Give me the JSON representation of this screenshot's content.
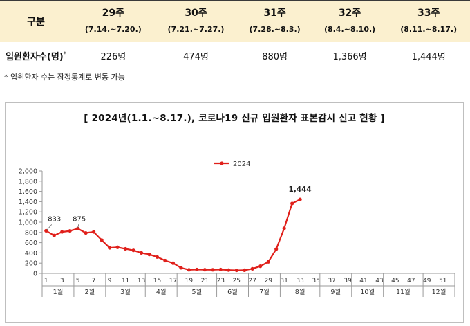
{
  "table": {
    "header_label": "구분",
    "columns": [
      {
        "week": "29주",
        "range": "(7.14.~7.20.)"
      },
      {
        "week": "30주",
        "range": "(7.21.~7.27.)"
      },
      {
        "week": "31주",
        "range": "(7.28.~8.3.)"
      },
      {
        "week": "32주",
        "range": "(8.4.~8.10.)"
      },
      {
        "week": "33주",
        "range": "(8.11.~8.17.)"
      }
    ],
    "row_label": "입원환자수(명)",
    "row_label_sup": "*",
    "values": [
      "226명",
      "474명",
      "880명",
      "1,366명",
      "1,444명"
    ]
  },
  "note": "* 입원환자 수는 잠정통계로 변동 가능",
  "chart_data": {
    "type": "line",
    "title": "[ 2024년(1.1.~8.17.), 코로나19 신규 입원환자 표본감시 신고 현황 ]",
    "xlabel": "",
    "ylabel": "",
    "ylim": [
      0,
      2000
    ],
    "yticks": [
      0,
      200,
      400,
      600,
      800,
      1000,
      1200,
      1400,
      1600,
      1800,
      2000
    ],
    "ytick_labels": [
      "0",
      "200",
      "400",
      "600",
      "800",
      "1,000",
      "1,200",
      "1,400",
      "1,600",
      "1,800",
      "2,000"
    ],
    "xlim": [
      1,
      52
    ],
    "xtick_labels": [
      "1",
      "3",
      "5",
      "7",
      "9",
      "11",
      "13",
      "15",
      "17",
      "19",
      "21",
      "23",
      "25",
      "27",
      "29",
      "31",
      "33",
      "35",
      "37",
      "39",
      "41",
      "43",
      "45",
      "47",
      "49",
      "51"
    ],
    "month_labels": [
      "1월",
      "2월",
      "3월",
      "4월",
      "5월",
      "6월",
      "7월",
      "8월",
      "9월",
      "10월",
      "11월",
      "12월"
    ],
    "month_boundaries": [
      1,
      5,
      9,
      14,
      18,
      23,
      27,
      31,
      36,
      40,
      44,
      49,
      53
    ],
    "legend": "top-center",
    "grid": false,
    "series": [
      {
        "name": "2024",
        "color": "#e0201b",
        "x": [
          1,
          2,
          3,
          4,
          5,
          6,
          7,
          8,
          9,
          10,
          11,
          12,
          13,
          14,
          15,
          16,
          17,
          18,
          19,
          20,
          21,
          22,
          23,
          24,
          25,
          26,
          27,
          28,
          29,
          30,
          31,
          32,
          33
        ],
        "values": [
          833,
          740,
          810,
          830,
          875,
          790,
          810,
          650,
          500,
          510,
          480,
          450,
          400,
          370,
          320,
          250,
          200,
          110,
          70,
          75,
          72,
          70,
          75,
          65,
          60,
          62,
          90,
          140,
          226,
          474,
          880,
          1366,
          1444
        ]
      }
    ],
    "annotations": [
      {
        "x": 1,
        "value": 833,
        "text": "833"
      },
      {
        "x": 5,
        "value": 875,
        "text": "875"
      },
      {
        "x": 33,
        "value": 1444,
        "text": "1,444"
      }
    ]
  }
}
